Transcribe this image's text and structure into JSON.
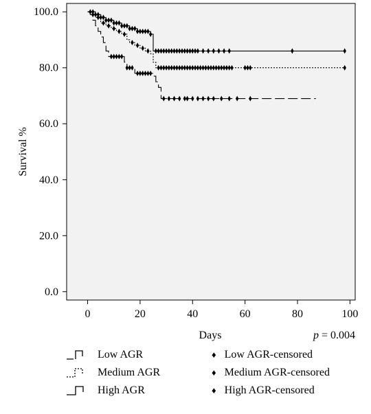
{
  "chart_data": {
    "type": "line",
    "subtype": "kaplan-meier",
    "xlabel": "Days",
    "ylabel": "Survival %",
    "annotation_p": "p",
    "annotation_value": "= 0.004",
    "xlim": [
      -8,
      102
    ],
    "ylim": [
      -3,
      103
    ],
    "xticks": [
      0,
      20,
      40,
      60,
      80,
      100
    ],
    "yticks": [
      "0.0",
      "20.0",
      "40.0",
      "60.0",
      "80.0",
      "100.0"
    ],
    "ytick_values": [
      0,
      20,
      40,
      60,
      80,
      100
    ],
    "background": "#f2f2f2",
    "series": [
      {
        "name": "Low AGR",
        "dash": "long",
        "steps": [
          [
            0,
            100
          ],
          [
            1,
            99
          ],
          [
            2,
            97
          ],
          [
            3,
            95
          ],
          [
            4,
            93
          ],
          [
            5,
            91
          ],
          [
            6,
            89
          ],
          [
            7,
            86
          ],
          [
            8,
            84
          ],
          [
            13,
            84
          ],
          [
            14,
            82
          ],
          [
            15,
            80
          ],
          [
            17,
            80
          ],
          [
            18,
            78
          ],
          [
            24,
            78
          ],
          [
            25,
            77
          ],
          [
            26,
            75
          ],
          [
            27,
            73
          ],
          [
            28,
            69
          ],
          [
            87,
            69
          ]
        ],
        "censored": [
          9,
          10,
          11,
          12,
          13,
          15,
          16,
          17,
          19,
          20,
          21,
          22,
          23,
          24,
          29,
          31,
          33,
          35,
          37,
          38,
          40,
          42,
          44,
          46,
          48,
          51,
          54,
          57,
          62
        ]
      },
      {
        "name": "Medium AGR",
        "dash": "short",
        "steps": [
          [
            0,
            100
          ],
          [
            2,
            99
          ],
          [
            3,
            98
          ],
          [
            5,
            96
          ],
          [
            7,
            95
          ],
          [
            9,
            94
          ],
          [
            11,
            93
          ],
          [
            13,
            92
          ],
          [
            15,
            90
          ],
          [
            16,
            89
          ],
          [
            18,
            88
          ],
          [
            20,
            87
          ],
          [
            22,
            86
          ],
          [
            24,
            85
          ],
          [
            25,
            82
          ],
          [
            26,
            80
          ],
          [
            98,
            80
          ]
        ],
        "censored": [
          2,
          4,
          6,
          8,
          10,
          12,
          14,
          17,
          19,
          21,
          23,
          27,
          28,
          29,
          30,
          31,
          32,
          33,
          34,
          35,
          36,
          37,
          38,
          39,
          40,
          41,
          42,
          43,
          44,
          45,
          46,
          47,
          48,
          49,
          50,
          51,
          52,
          53,
          54,
          55,
          60,
          61,
          62,
          98
        ]
      },
      {
        "name": "High AGR",
        "dash": "solid",
        "steps": [
          [
            0,
            100
          ],
          [
            3,
            99
          ],
          [
            5,
            98
          ],
          [
            7,
            97
          ],
          [
            10,
            96
          ],
          [
            13,
            95
          ],
          [
            16,
            94
          ],
          [
            19,
            93
          ],
          [
            24,
            92
          ],
          [
            25,
            86
          ],
          [
            98,
            86
          ]
        ],
        "censored": [
          1,
          2,
          3,
          4,
          5,
          6,
          7,
          8,
          9,
          10,
          11,
          12,
          13,
          14,
          15,
          16,
          17,
          18,
          19,
          20,
          21,
          22,
          23,
          24,
          26,
          27,
          28,
          29,
          30,
          31,
          32,
          33,
          34,
          35,
          36,
          37,
          38,
          39,
          40,
          41,
          42,
          44,
          46,
          48,
          50,
          52,
          54,
          78,
          98
        ]
      }
    ],
    "legend": {
      "lines": [
        "Low AGR",
        "Medium AGR",
        "High AGR"
      ],
      "censored": [
        "Low AGR-censored",
        "Medium AGR-censored",
        "High AGR-censored"
      ]
    }
  }
}
